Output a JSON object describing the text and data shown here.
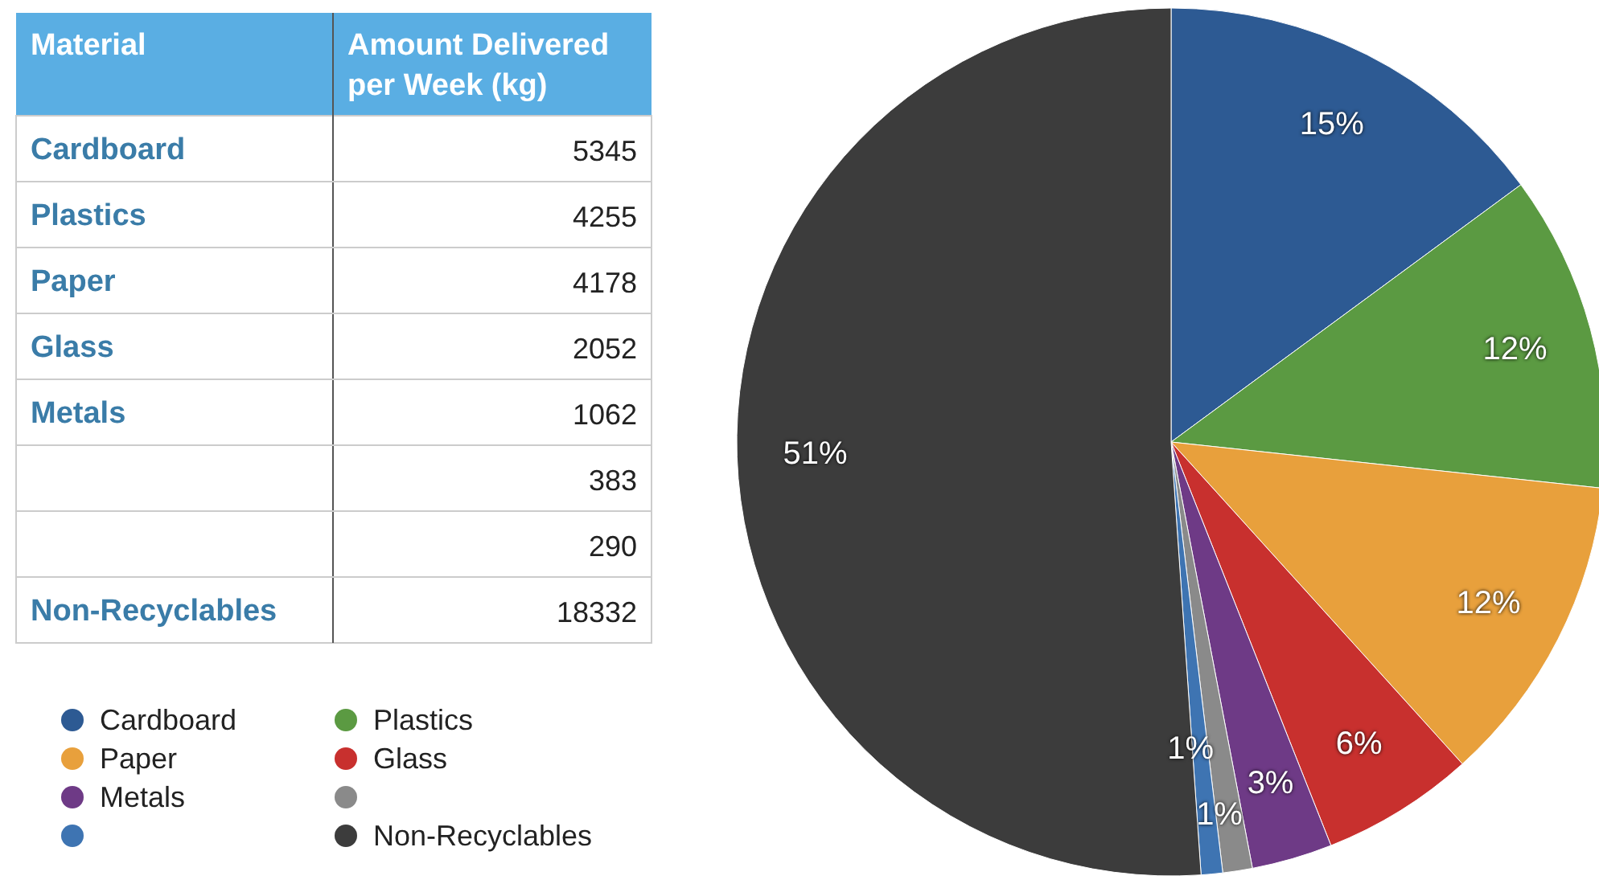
{
  "chart_data": [
    {
      "type": "other",
      "categories": [
        "Cardboard",
        "Plastics",
        "Paper",
        "Glass",
        "Metals",
        null,
        null,
        "Non-Recyclables"
      ],
      "values": [
        5345,
        4255,
        4178,
        2052,
        1062,
        383,
        290,
        18332
      ],
      "data_labels": true,
      "annotations": [
        "Material",
        "Amount Delivered per Week (kg)"
      ]
    },
    {
      "type": "pie",
      "categories": [
        "Cardboard",
        "Plastics",
        "Paper",
        "Glass",
        "Metals",
        null,
        null,
        "Non-Recyclables"
      ],
      "values": [
        14.9,
        11.8,
        11.6,
        5.7,
        3.0,
        1.1,
        0.8,
        51.1
      ],
      "colors": [
        "#2d5a93",
        "#5b9a42",
        "#e8a03c",
        "#c8302e",
        "#6e3a86",
        "#8a8a8a",
        "#3e74b2",
        "#3c3c3c"
      ],
      "value_labels": [
        "15%",
        "12%",
        "12%",
        "6%",
        "3%",
        "1%",
        "1%",
        "51%"
      ],
      "legend": "left"
    }
  ]
}
